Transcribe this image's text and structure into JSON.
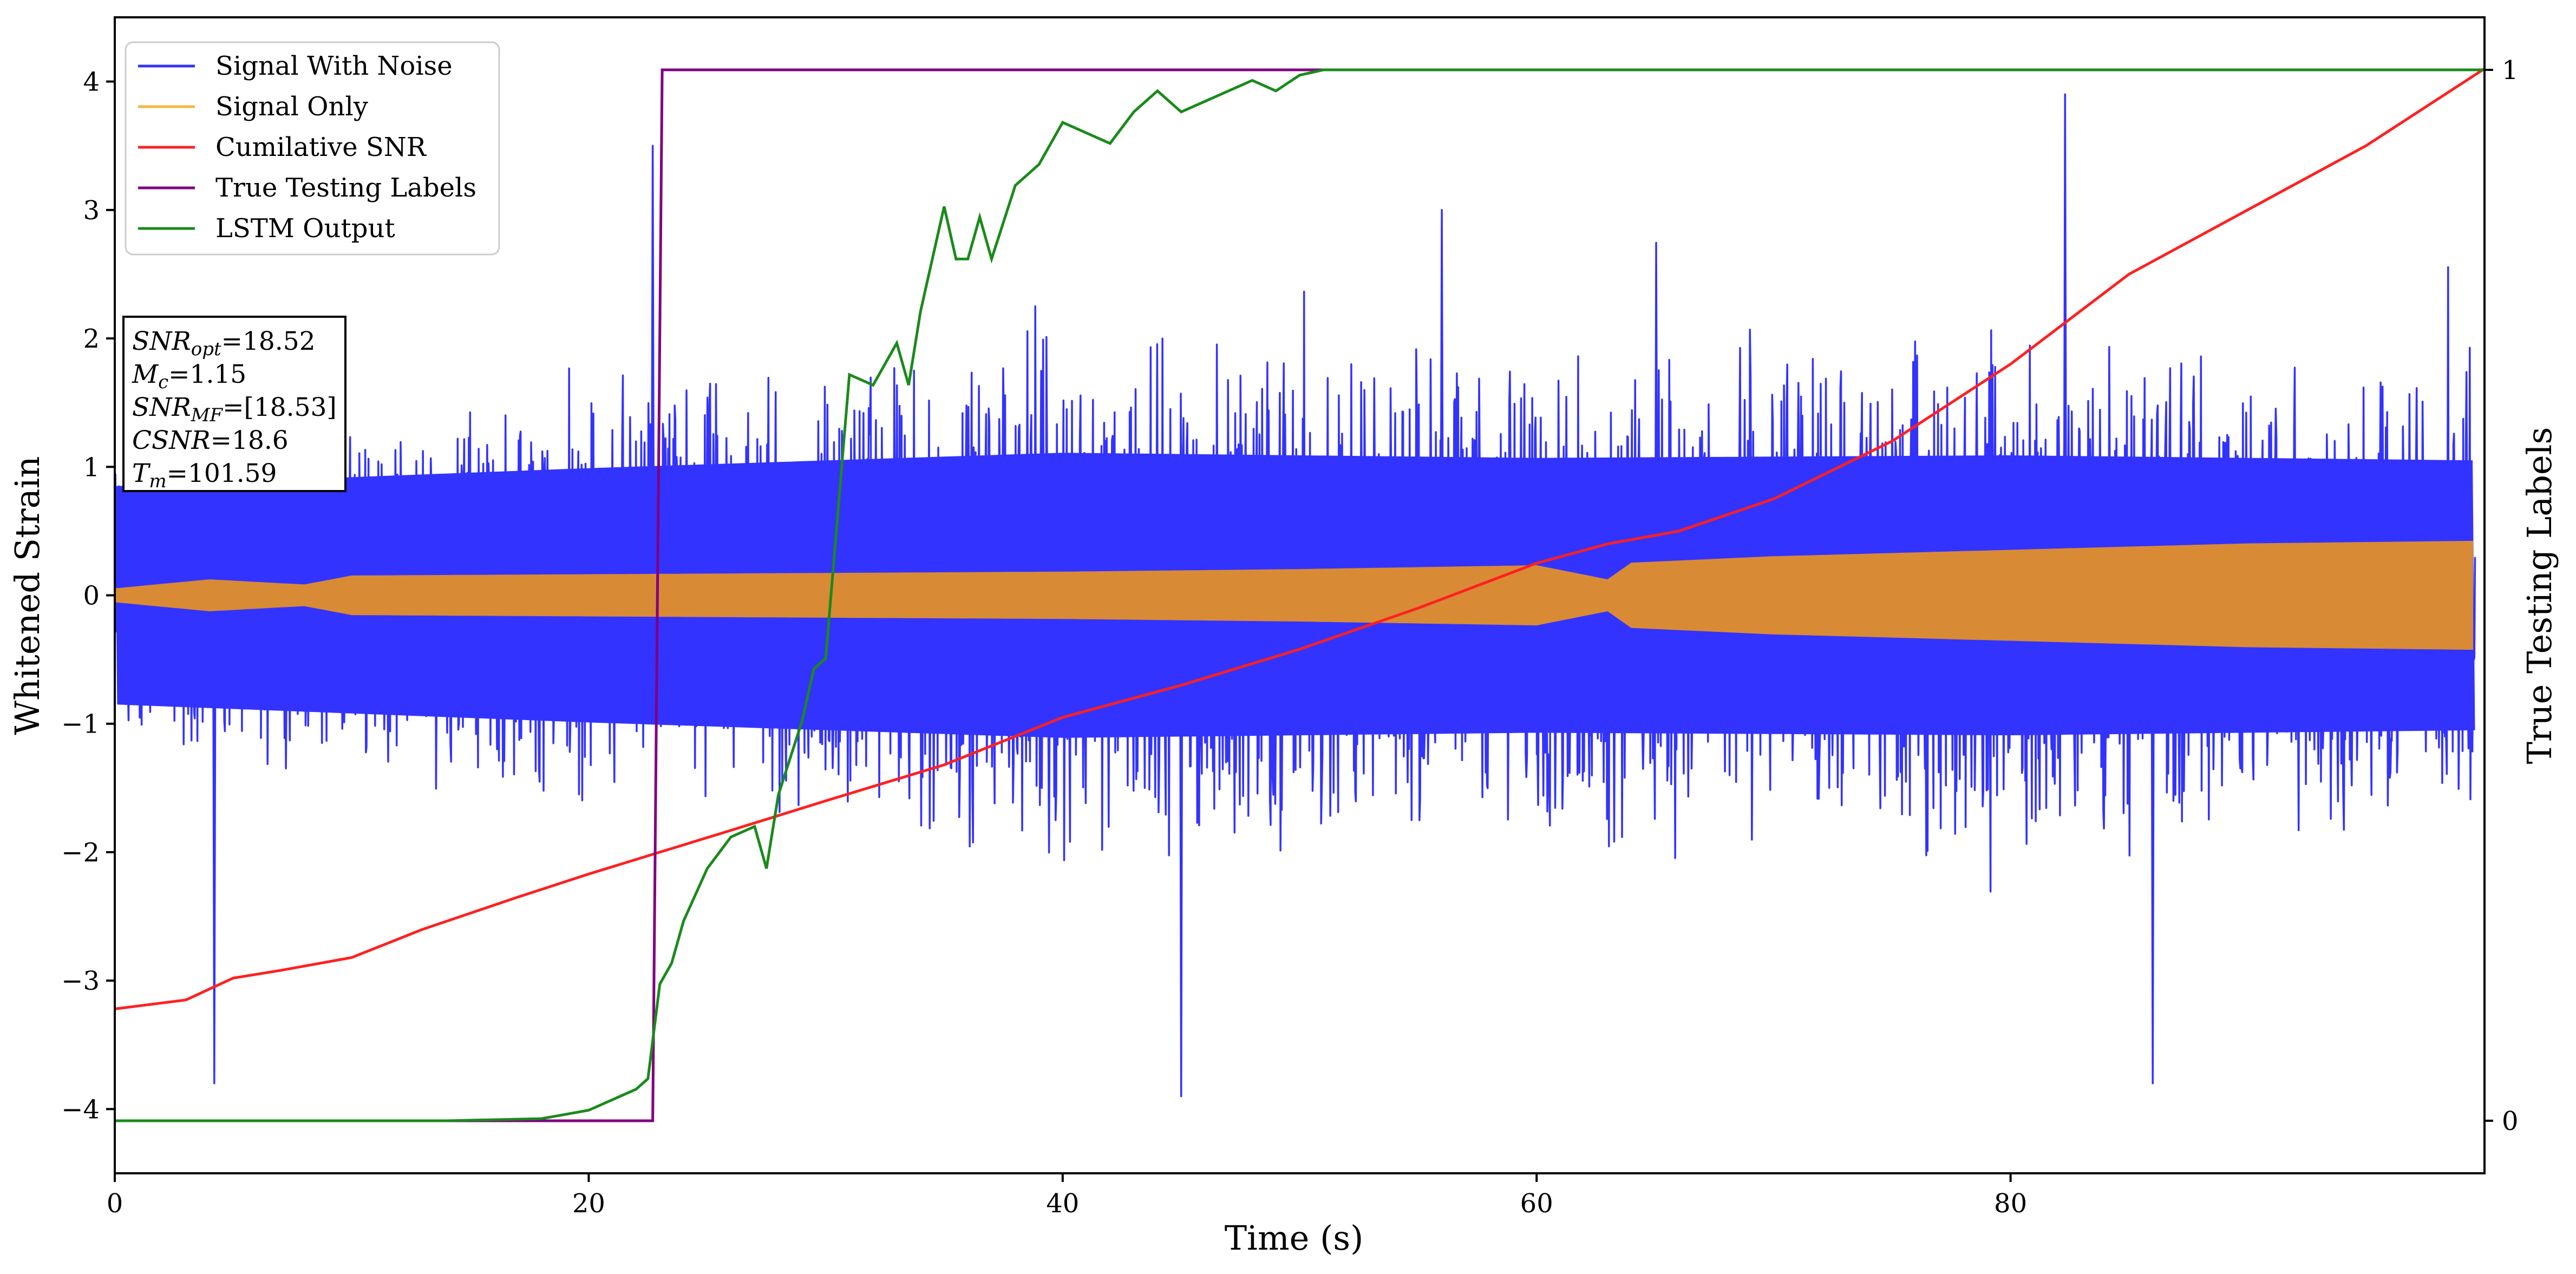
{
  "chart_data": {
    "type": "line",
    "xlabel": "Time (s)",
    "ylabel_left": "Whitened Strain",
    "ylabel_right": "True Testing Labels",
    "xlim": [
      0,
      100
    ],
    "ylim_left": [
      -4.5,
      4.5
    ],
    "ylim_right": [
      -0.05,
      1.05
    ],
    "x_ticks": [
      0,
      20,
      40,
      60,
      80
    ],
    "y_ticks_left": [
      -4,
      -3,
      -2,
      -1,
      0,
      1,
      2,
      3,
      4
    ],
    "y_ticks_right": [
      0,
      1
    ],
    "grid": false,
    "legend_position": "upper-left",
    "colors": {
      "noise": "#3333ff",
      "signal": "#d98a35",
      "signal_legend": "#f5b642",
      "csnr": "#ff2020",
      "labels": "#800080",
      "lstm": "#1a8a1a"
    },
    "series": [
      {
        "name": "Signal With Noise",
        "axis": "left",
        "description_of_shape": "noise band",
        "envelope_points": [
          [
            0,
            1.5
          ],
          [
            20,
            2.2
          ],
          [
            40,
            2.8
          ],
          [
            60,
            2.6
          ],
          [
            80,
            2.7
          ],
          [
            100,
            2.5
          ]
        ],
        "extreme_spikes": [
          [
            4.2,
            -3.8
          ],
          [
            22.7,
            3.5
          ],
          [
            45,
            -3.9
          ],
          [
            56,
            3.0
          ],
          [
            82.3,
            3.9
          ],
          [
            86,
            -3.8
          ]
        ]
      },
      {
        "name": "Signal Only",
        "axis": "left",
        "amplitude_envelope": [
          [
            0,
            0.05
          ],
          [
            4,
            0.12
          ],
          [
            8,
            0.08
          ],
          [
            10,
            0.15
          ],
          [
            20,
            0.16
          ],
          [
            30,
            0.17
          ],
          [
            40,
            0.18
          ],
          [
            50,
            0.2
          ],
          [
            60,
            0.23
          ],
          [
            63,
            0.12
          ],
          [
            64,
            0.25
          ],
          [
            70,
            0.3
          ],
          [
            80,
            0.35
          ],
          [
            90,
            0.4
          ],
          [
            99.5,
            0.42
          ]
        ]
      },
      {
        "name": "Cumilative SNR",
        "axis": "left",
        "points": [
          [
            0,
            -3.22
          ],
          [
            3,
            -3.15
          ],
          [
            5,
            -2.98
          ],
          [
            7,
            -2.92
          ],
          [
            10,
            -2.82
          ],
          [
            13,
            -2.6
          ],
          [
            17,
            -2.35
          ],
          [
            20,
            -2.17
          ],
          [
            23,
            -2.0
          ],
          [
            26,
            -1.83
          ],
          [
            30,
            -1.6
          ],
          [
            35,
            -1.32
          ],
          [
            40,
            -0.95
          ],
          [
            45,
            -0.7
          ],
          [
            50,
            -0.42
          ],
          [
            55,
            -0.1
          ],
          [
            60,
            0.25
          ],
          [
            63,
            0.4
          ],
          [
            66,
            0.5
          ],
          [
            70,
            0.75
          ],
          [
            75,
            1.2
          ],
          [
            80,
            1.8
          ],
          [
            85,
            2.5
          ],
          [
            90,
            3.0
          ],
          [
            95,
            3.5
          ],
          [
            100,
            4.1
          ]
        ]
      },
      {
        "name": "True Testing Labels",
        "axis": "right",
        "points": [
          [
            0,
            0
          ],
          [
            22.7,
            0
          ],
          [
            23.1,
            1
          ],
          [
            51,
            1
          ]
        ]
      },
      {
        "name": "LSTM Output",
        "axis": "right",
        "points": [
          [
            0,
            0
          ],
          [
            14,
            0
          ],
          [
            18,
            0.002
          ],
          [
            20,
            0.01
          ],
          [
            21,
            0.02
          ],
          [
            22,
            0.03
          ],
          [
            22.5,
            0.04
          ],
          [
            23,
            0.13
          ],
          [
            23.5,
            0.15
          ],
          [
            24,
            0.19
          ],
          [
            25,
            0.24
          ],
          [
            26,
            0.27
          ],
          [
            27,
            0.28
          ],
          [
            27.5,
            0.24
          ],
          [
            28,
            0.31
          ],
          [
            29,
            0.38
          ],
          [
            29.5,
            0.43
          ],
          [
            30,
            0.44
          ],
          [
            31,
            0.71
          ],
          [
            32,
            0.7
          ],
          [
            33,
            0.74
          ],
          [
            33.5,
            0.7
          ],
          [
            34,
            0.77
          ],
          [
            35,
            0.87
          ],
          [
            35.5,
            0.82
          ],
          [
            36,
            0.82
          ],
          [
            36.5,
            0.86
          ],
          [
            37,
            0.82
          ],
          [
            38,
            0.89
          ],
          [
            39,
            0.91
          ],
          [
            40,
            0.95
          ],
          [
            41,
            0.94
          ],
          [
            42,
            0.93
          ],
          [
            43,
            0.96
          ],
          [
            44,
            0.98
          ],
          [
            45,
            0.96
          ],
          [
            46,
            0.97
          ],
          [
            47,
            0.98
          ],
          [
            48,
            0.99
          ],
          [
            49,
            0.98
          ],
          [
            50,
            0.995
          ],
          [
            51,
            1
          ],
          [
            52,
            1
          ],
          [
            100,
            1
          ]
        ]
      }
    ]
  },
  "annotation": {
    "lines": [
      {
        "base": "SNR",
        "sub": "opt",
        "rest": "=18.52"
      },
      {
        "base": "M",
        "sub": "c",
        "rest": "=1.15"
      },
      {
        "base": "SNR",
        "sub": "MF",
        "rest": "=[18.53]"
      },
      {
        "base": "CSNR",
        "sub": "",
        "rest": "=18.6"
      },
      {
        "base": "T",
        "sub": "m",
        "rest": "=101.59"
      }
    ]
  }
}
